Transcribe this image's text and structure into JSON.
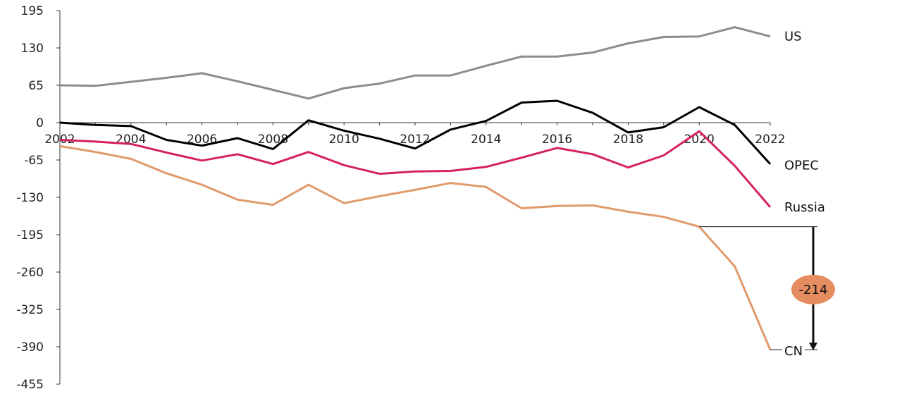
{
  "chart_data": {
    "type": "line",
    "x": [
      2002,
      2003,
      2004,
      2005,
      2006,
      2007,
      2008,
      2009,
      2010,
      2011,
      2012,
      2013,
      2014,
      2015,
      2016,
      2017,
      2018,
      2019,
      2020,
      2021,
      2022
    ],
    "x_tick_labels": [
      "2002",
      "2004",
      "2006",
      "2008",
      "2010",
      "2012",
      "2014",
      "2016",
      "2018",
      "2020",
      "2022"
    ],
    "y_tick_labels": [
      "195",
      "130",
      "65",
      "0",
      "-65",
      "-130",
      "-195",
      "-260",
      "-325",
      "-390",
      "-455"
    ],
    "ylim": [
      -455,
      195
    ],
    "grid": false,
    "title": "",
    "xlabel": "",
    "ylabel": "",
    "series": [
      {
        "name": "US",
        "color": "#8c8c8c",
        "values": [
          65,
          64,
          71,
          78,
          86,
          72,
          57,
          42,
          60,
          68,
          82,
          82,
          99,
          115,
          115,
          122,
          138,
          149,
          150,
          166,
          150
        ]
      },
      {
        "name": "OPEC",
        "color": "#000000",
        "values": [
          0,
          -4,
          -6,
          -30,
          -40,
          -27,
          -46,
          4,
          -14,
          -28,
          -45,
          -12,
          3,
          35,
          38,
          17,
          -17,
          -8,
          27,
          -4,
          -72
        ]
      },
      {
        "name": "Russia",
        "color": "#d6225c",
        "values": [
          -30,
          -33,
          -37,
          -52,
          -66,
          -55,
          -72,
          -51,
          -74,
          -89,
          -85,
          -84,
          -77,
          -61,
          -44,
          -55,
          -78,
          -57,
          -15,
          -75,
          -147
        ]
      },
      {
        "name": "CN",
        "color": "#e09a6c",
        "values": [
          -41,
          -51,
          -63,
          -88,
          -108,
          -134,
          -143,
          -108,
          -140,
          -128,
          -117,
          -105,
          -112,
          -149,
          -145,
          -144,
          -155,
          -164,
          -181,
          -250,
          -395
        ]
      }
    ],
    "annotations": [
      {
        "text": "-214",
        "from_series": "CN",
        "from_x": 2020,
        "to_x": 2022,
        "from_value": -181,
        "to_value": -395,
        "badge_color": "#e58d61"
      }
    ]
  }
}
